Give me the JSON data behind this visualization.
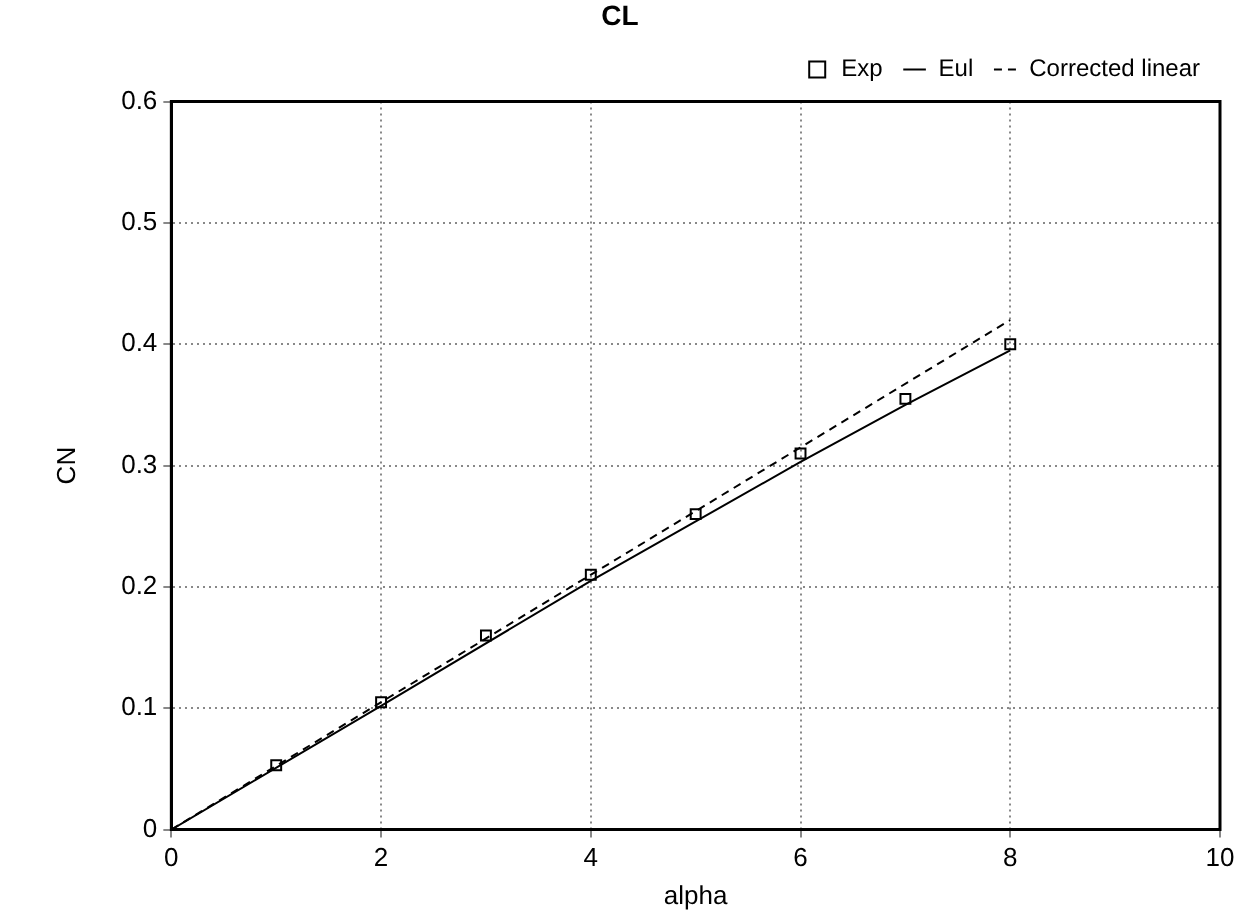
{
  "chart_data": {
    "type": "scatter",
    "title": "CL",
    "xlabel": "alpha",
    "ylabel": "CN",
    "xlim": [
      0,
      10
    ],
    "xticks": [
      0,
      2,
      4,
      6,
      8,
      10
    ],
    "ylim": [
      0,
      0.6
    ],
    "yticks": [
      0,
      0.1,
      0.2,
      0.3,
      0.4,
      0.5,
      0.6
    ],
    "grid": true,
    "legend": "top right",
    "series": [
      {
        "name": "Exp",
        "marker": "square",
        "color": "#000000",
        "x": [
          1,
          2,
          3,
          4,
          5,
          6,
          7,
          8
        ],
        "values": [
          0.053,
          0.105,
          0.16,
          0.21,
          0.26,
          0.31,
          0.355,
          0.4
        ]
      },
      {
        "name": "Eul",
        "type": "line",
        "line_style": "solid",
        "color": "#000000",
        "x": [
          0,
          2,
          4,
          6,
          7,
          8
        ],
        "values": [
          0,
          0.102,
          0.205,
          0.303,
          0.35,
          0.395
        ]
      },
      {
        "name": "Corrected linear",
        "type": "line",
        "line_style": "dashed",
        "color": "#000000",
        "x": [
          0,
          8
        ],
        "values": [
          0,
          0.42
        ]
      }
    ]
  }
}
